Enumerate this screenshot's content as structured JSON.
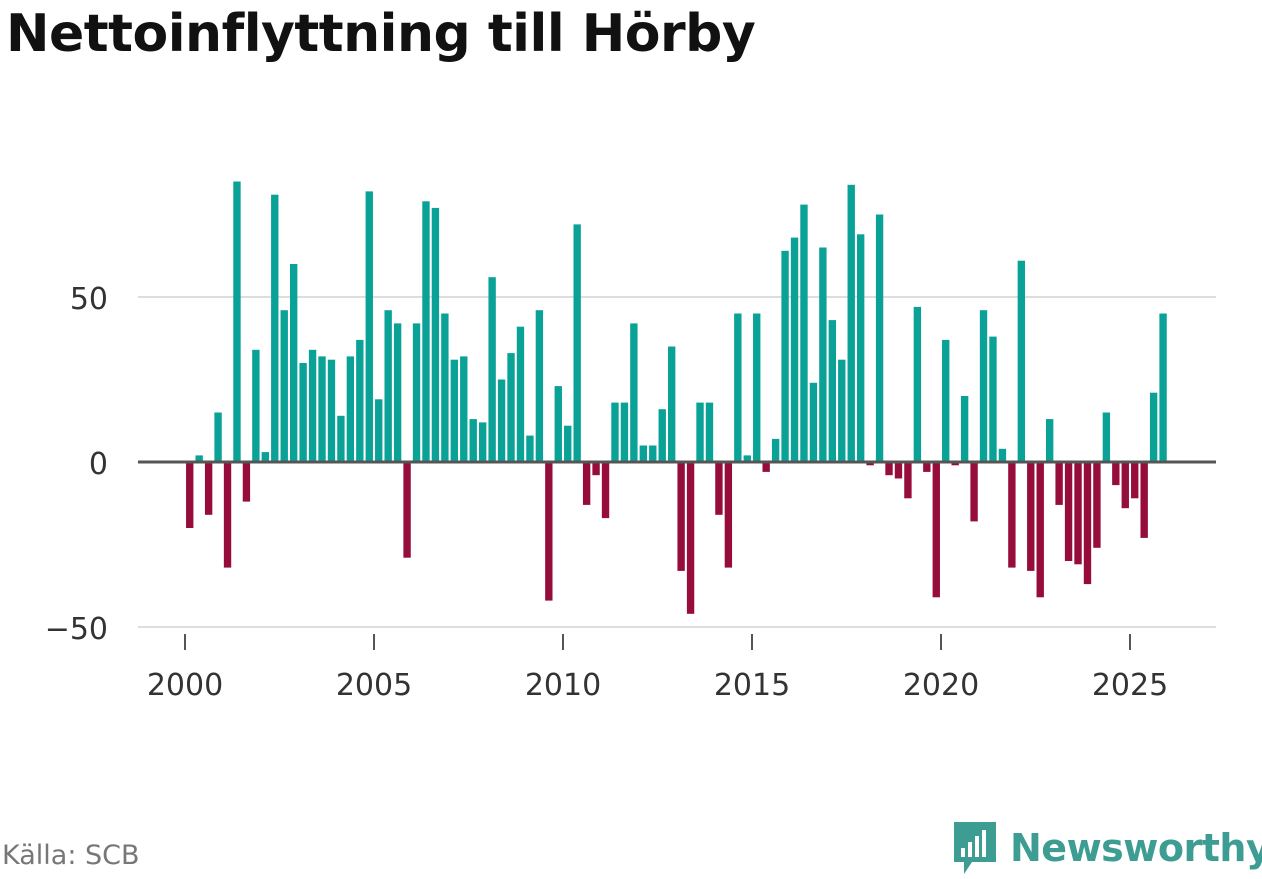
{
  "title": "Nettoinflyttning till Hörby",
  "source": "Källa: SCB",
  "brand": "Newsworthy",
  "colors": {
    "positive": "#0aa197",
    "negative": "#960c3a",
    "grid": "#dddddd",
    "zero_line": "#555555",
    "tick_text": "#333333",
    "brand": "#3d9d93"
  },
  "chart_data": {
    "type": "bar",
    "title": "Nettoinflyttning till Hörby",
    "xlabel": "",
    "ylabel": "",
    "ylim": [
      -50,
      85
    ],
    "yticks": [
      -50,
      0,
      50
    ],
    "ytick_labels": [
      "−50",
      "0",
      "50"
    ],
    "xlim": [
      1999.0,
      2027.2
    ],
    "xticks": [
      2000,
      2005,
      2010,
      2015,
      2020,
      2025
    ],
    "xtick_labels": [
      "2000",
      "2005",
      "2010",
      "2015",
      "2020",
      "2025"
    ],
    "x_start": 2000.125,
    "x_step": 0.25,
    "values": [
      -20,
      2,
      -16,
      15,
      -32,
      85,
      -12,
      34,
      3,
      81,
      46,
      60,
      30,
      34,
      32,
      31,
      14,
      32,
      37,
      82,
      19,
      46,
      42,
      -29,
      42,
      79,
      77,
      45,
      31,
      32,
      13,
      12,
      56,
      25,
      33,
      41,
      8,
      46,
      -42,
      23,
      11,
      72,
      -13,
      -4,
      -17,
      18,
      18,
      42,
      5,
      5,
      16,
      35,
      -33,
      -46,
      18,
      18,
      -16,
      -32,
      45,
      2,
      45,
      -3,
      7,
      64,
      68,
      78,
      24,
      65,
      43,
      31,
      84,
      69,
      -1,
      75,
      -4,
      -5,
      -11,
      47,
      -3,
      -41,
      37,
      -1,
      20,
      -18,
      46,
      38,
      4,
      -32,
      61,
      -33,
      -41,
      13,
      -13,
      -30,
      -31,
      -37,
      -26,
      15,
      -7,
      -14,
      -11,
      -23,
      21,
      45
    ]
  }
}
